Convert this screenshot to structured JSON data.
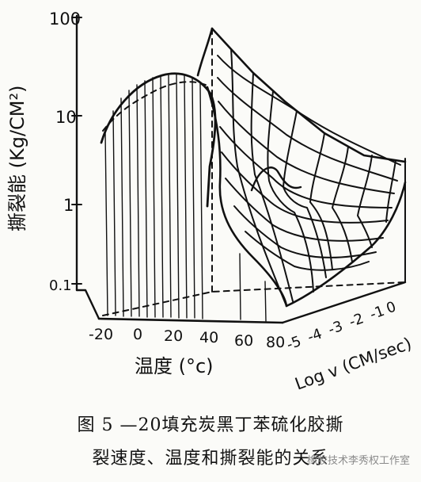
{
  "chart_data": {
    "type": "surface-3d",
    "ylabel": "撕裂能 (Kg/CM²)",
    "xlabel": "温度 (°c)",
    "zlabel": "Log v (CM/sec)",
    "y_ticks": [
      "0.1",
      "1",
      "10",
      "100"
    ],
    "y_scale": "log",
    "ylim": [
      0.1,
      100
    ],
    "x_ticks": [
      "-20",
      "0",
      "20",
      "40",
      "60",
      "80"
    ],
    "xlim": [
      -20,
      80
    ],
    "z_ticks": [
      "-5",
      "-4",
      "-3",
      "-2",
      "-1",
      "0"
    ],
    "zlim": [
      -5,
      0
    ],
    "front_edge_profile": {
      "temperature": [
        -20,
        0,
        20,
        40,
        60,
        80
      ],
      "tear_energy": [
        6,
        15,
        20,
        2,
        1,
        0.2
      ]
    }
  },
  "caption": {
    "line1": "图 5 —20填充炭黑丁苯硫化胶撕",
    "line2": "裂速度、温度和撕裂能的关系"
  },
  "watermark": "橡胶技术李秀权工作室"
}
